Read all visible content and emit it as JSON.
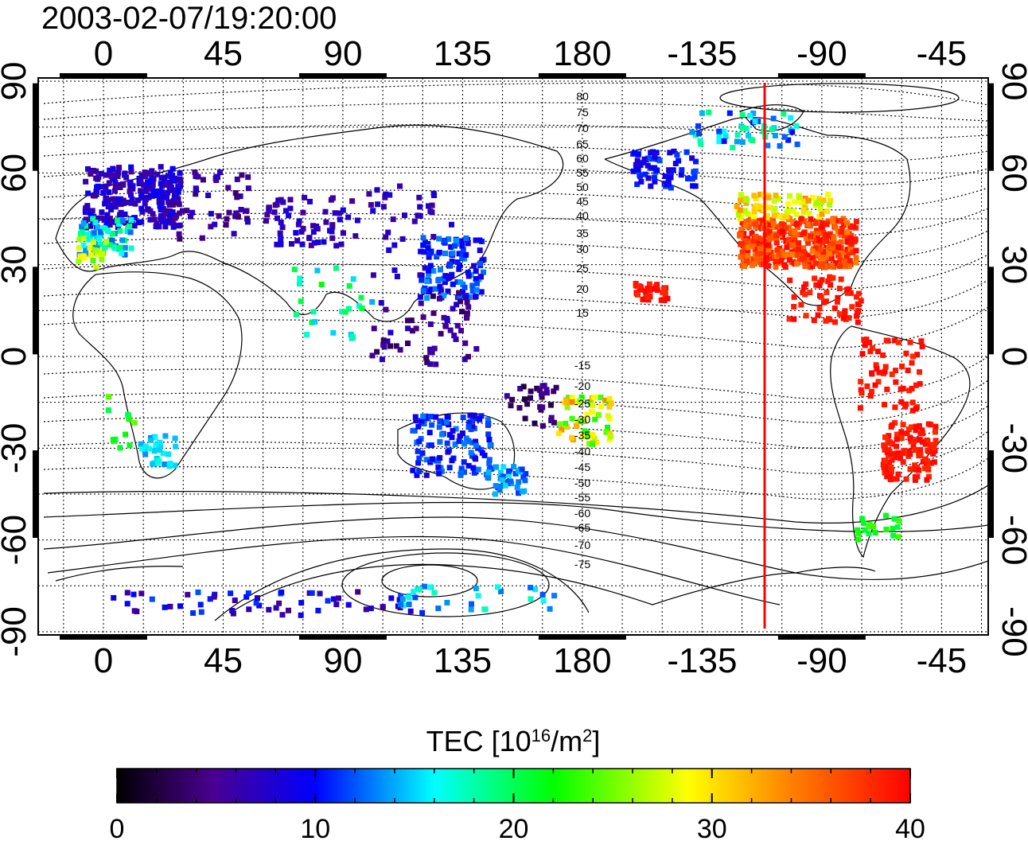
{
  "title": "2003-02-07/19:20:00",
  "map": {
    "lon_ticks": [
      "0",
      "45",
      "90",
      "135",
      "180",
      "-135",
      "-90",
      "-45"
    ],
    "lat_ticks": [
      "90",
      "60",
      "30",
      "0",
      "-30",
      "-60",
      "-90"
    ],
    "local_time_meridian_lon": -110,
    "contour_labels_north": [
      "80",
      "75",
      "70",
      "65",
      "60",
      "55",
      "50",
      "45",
      "40",
      "35",
      "30",
      "25",
      "20",
      "15"
    ],
    "contour_labels_south": [
      "-15",
      "-20",
      "-25",
      "-30",
      "-35",
      "-40",
      "-45",
      "-50",
      "-55",
      "-60",
      "-65",
      "-70",
      "-75"
    ],
    "colors": {
      "meridian": "#ff0000",
      "frame": "#000000",
      "grid": "#000000"
    }
  },
  "colorbar": {
    "title_prefix": "TEC  [10",
    "title_exp": "16",
    "title_mid": "/m",
    "title_exp2": "2",
    "title_suffix": "]",
    "ticks": [
      "0",
      "10",
      "20",
      "30",
      "40"
    ],
    "min": 0,
    "max": 40,
    "stops": [
      "#000000",
      "#5500a0",
      "#0000ff",
      "#00ffff",
      "#00ff00",
      "#ffff00",
      "#ff0000"
    ]
  }
}
